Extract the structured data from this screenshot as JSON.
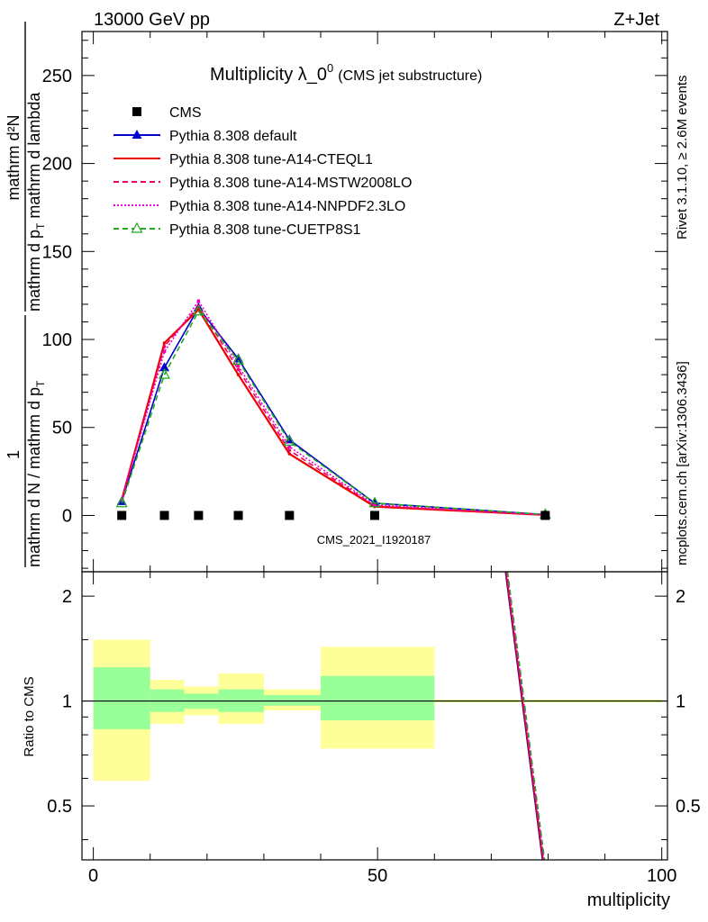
{
  "header": {
    "energy": "13000 GeV pp",
    "process": "Z+Jet",
    "title_main": "Multiplicity λ_0",
    "title_sup": "0",
    "title_sub": "(CMS jet substructure)",
    "analysis_id": "CMS_2021_I1920187",
    "rivet_label": "Rivet 3.1.10, ≥ 2.6M events",
    "source_label": "mcplots.cern.ch [arXiv:1306.3436]"
  },
  "axes": {
    "ylabel_frac_num": "mathrm d²N",
    "ylabel_frac_den_a": "mathrm d p",
    "ylabel_frac_den_a_sub": "T",
    "ylabel_frac_den_b": " mathrm d lambda",
    "ylabel_prefix_num": "1",
    "ylabel_prefix_den": "mathrm d N / mathrm d p",
    "ylabel_prefix_den_sub": "T",
    "ratio_ylabel": "Ratio to CMS",
    "xlabel": "multiplicity",
    "main_y_ticks": [
      "0",
      "50",
      "100",
      "150",
      "200",
      "250"
    ],
    "ratio_y_ticks": [
      "0.5",
      "1",
      "2"
    ],
    "x_ticks": [
      "0",
      "50",
      "100"
    ]
  },
  "chart_data": {
    "type": "line",
    "xlim": [
      -2,
      101
    ],
    "main_ylim": [
      -32,
      275
    ],
    "ratio_ylim": [
      0.35,
      2.35
    ],
    "ratio_log_scale": true,
    "x": [
      5,
      12.5,
      18.5,
      25.5,
      34.5,
      49.5,
      79.5
    ],
    "bins": [
      [
        0,
        10
      ],
      [
        10,
        16
      ],
      [
        16,
        22
      ],
      [
        22,
        30
      ],
      [
        30,
        40
      ],
      [
        40,
        60
      ],
      [
        60,
        100
      ]
    ],
    "cms_data": [
      0,
      0,
      0,
      0,
      0,
      0,
      0
    ],
    "series": [
      {
        "name": "Pythia 8.308 default",
        "color": "#0000cc",
        "style": "solid",
        "marker": "triangle-filled",
        "values": [
          8,
          84,
          118,
          89,
          43,
          7,
          0.5
        ]
      },
      {
        "name": "Pythia 8.308 tune-A14-CTEQL1",
        "color": "#ee0000",
        "style": "solid",
        "marker": "none",
        "values": [
          9,
          98,
          117,
          80,
          35,
          5,
          0.3
        ]
      },
      {
        "name": "Pythia 8.308 tune-A14-MSTW2008LO",
        "color": "#ee0066",
        "style": "dashed",
        "marker": "none",
        "values": [
          9,
          96,
          119,
          83,
          37,
          5.5,
          0.3
        ]
      },
      {
        "name": "Pythia 8.308 tune-A14-NNPDF2.3LO",
        "color": "#ee00cc",
        "style": "dotted",
        "marker": "none",
        "values": [
          9,
          93,
          122,
          85,
          39,
          6,
          0.3
        ]
      },
      {
        "name": "Pythia 8.308 tune-CUETP8S1",
        "color": "#22aa22",
        "style": "dashed",
        "marker": "triangle-open",
        "values": [
          7,
          80,
          116,
          88,
          42,
          7,
          0.5
        ]
      }
    ],
    "ratio_bands": [
      {
        "x": [
          0,
          10
        ],
        "yellow": [
          0.59,
          1.5
        ],
        "green": [
          0.83,
          1.25
        ]
      },
      {
        "x": [
          10,
          16
        ],
        "yellow": [
          0.86,
          1.15
        ],
        "green": [
          0.93,
          1.08
        ]
      },
      {
        "x": [
          16,
          22
        ],
        "yellow": [
          0.91,
          1.1
        ],
        "green": [
          0.95,
          1.05
        ]
      },
      {
        "x": [
          22,
          30
        ],
        "yellow": [
          0.86,
          1.2
        ],
        "green": [
          0.93,
          1.08
        ]
      },
      {
        "x": [
          30,
          40
        ],
        "yellow": [
          0.94,
          1.08
        ],
        "green": [
          0.97,
          1.04
        ]
      },
      {
        "x": [
          40,
          60
        ],
        "yellow": [
          0.73,
          1.43
        ],
        "green": [
          0.88,
          1.18
        ]
      },
      {
        "x": [
          60,
          100
        ],
        "yellow": [
          0.99,
          1.01
        ],
        "green": [
          0.995,
          1.005
        ]
      }
    ],
    "ratio_curve": {
      "x": [
        72.5,
        79
      ],
      "y": [
        2.35,
        0.35
      ]
    },
    "legend_position": "top-left"
  },
  "colors": {
    "yellow_band": "#ffff99",
    "green_band": "#99ff99",
    "frame": "#000000",
    "side_text": "#888888"
  }
}
